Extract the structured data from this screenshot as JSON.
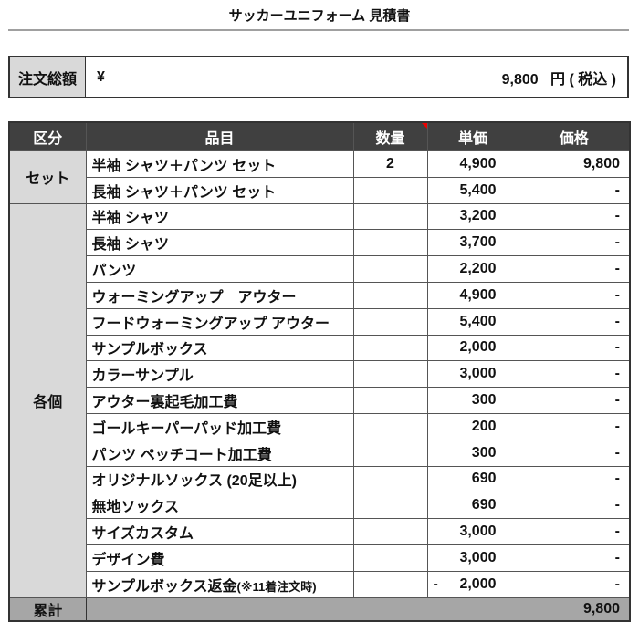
{
  "title": "サッカーユニフォーム 見積書",
  "summary": {
    "label": "注文総額",
    "currency": "¥",
    "amount": "9,800",
    "suffix": "円 ( 税込 )"
  },
  "headers": [
    "区分",
    "品目",
    "数量",
    "単価",
    "価格"
  ],
  "groups": {
    "set": "セット",
    "each": "各個"
  },
  "rows": [
    {
      "item": "半袖 シャツ＋パンツ セット",
      "qty": "2",
      "unit": "4,900",
      "price": "9,800"
    },
    {
      "item": "長袖 シャツ＋パンツ セット",
      "qty": "",
      "unit": "5,400",
      "price": "-"
    },
    {
      "item": "半袖 シャツ",
      "qty": "",
      "unit": "3,200",
      "price": "-"
    },
    {
      "item": "長袖 シャツ",
      "qty": "",
      "unit": "3,700",
      "price": "-"
    },
    {
      "item": "パンツ",
      "qty": "",
      "unit": "2,200",
      "price": "-"
    },
    {
      "item": "ウォーミングアップ　アウター",
      "qty": "",
      "unit": "4,900",
      "price": "-"
    },
    {
      "item": "フードウォーミングアップ アウター",
      "qty": "",
      "unit": "5,400",
      "price": "-"
    },
    {
      "item": "サンプルボックス",
      "qty": "",
      "unit": "2,000",
      "price": "-"
    },
    {
      "item": "カラーサンプル",
      "qty": "",
      "unit": "3,000",
      "price": "-"
    },
    {
      "item": "アウター裏起毛加工費",
      "qty": "",
      "unit": "300",
      "price": "-"
    },
    {
      "item": "ゴールキーパーパッド加工費",
      "qty": "",
      "unit": "200",
      "price": "-"
    },
    {
      "item": "パンツ ペッチコート加工費",
      "qty": "",
      "unit": "300",
      "price": "-"
    },
    {
      "item": "オリジナルソックス (20足以上)",
      "qty": "",
      "unit": "690",
      "price": "-"
    },
    {
      "item": "無地ソックス",
      "qty": "",
      "unit": "690",
      "price": "-"
    },
    {
      "item": "サイズカスタム",
      "qty": "",
      "unit": "3,000",
      "price": "-"
    },
    {
      "item": "デザイン費",
      "qty": "",
      "unit": "3,000",
      "price": "-"
    },
    {
      "item": "サンプルボックス返金",
      "item_note": "(※11着注文時)",
      "qty": "",
      "unit_sign": "-",
      "unit": "2,000",
      "price": "-"
    }
  ],
  "total": {
    "label": "累計",
    "value": "9,800"
  },
  "colors": {
    "header_bg": "#404040",
    "category_bg": "#d9d9d9",
    "total_bg": "#a6a6a6",
    "comment_marker": "#ee0000"
  }
}
